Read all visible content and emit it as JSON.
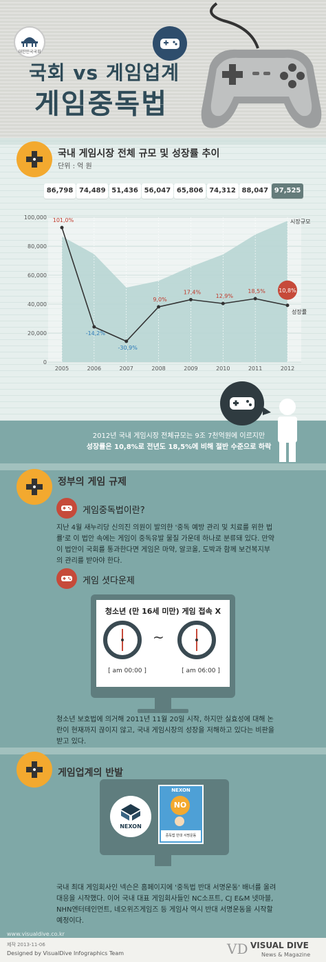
{
  "header": {
    "seal_text": "대한민국국회",
    "title_line1": "국회 vs 게임업계",
    "title_line2": "게임중독법"
  },
  "section1": {
    "title": "국내 게임시장 전체 규모 및 성장률 추이",
    "unit": "단위 : 억 원",
    "value_boxes": [
      "86,798",
      "74,489",
      "51,436",
      "56,047",
      "65,806",
      "74,312",
      "88,047",
      "97,525"
    ]
  },
  "chart_data": {
    "type": "area",
    "categories": [
      "2005",
      "2006",
      "2007",
      "2008",
      "2009",
      "2010",
      "2011",
      "2012"
    ],
    "series": [
      {
        "name": "시장규모",
        "values": [
          86798,
          74489,
          51436,
          56047,
          65806,
          74312,
          88047,
          97525
        ]
      },
      {
        "name": "성장률",
        "values": [
          101.0,
          -14.2,
          -30.9,
          9.0,
          17.4,
          12.9,
          18.5,
          10.8
        ],
        "labels": [
          "101,0%",
          "-14,2%",
          "-30,9%",
          "9,0%",
          "17,4%",
          "12,9%",
          "18,5%",
          "10,8%"
        ]
      }
    ],
    "y_ticks": [
      "100,000",
      "80,000",
      "60,000",
      "40,000",
      "20,000",
      "0"
    ],
    "ylim": [
      0,
      100000
    ],
    "colors": {
      "area": "#b8d6d4",
      "line": "#333333",
      "positive_label": "#c0392b",
      "negative_label": "#2e7bb8"
    }
  },
  "statement": {
    "line1": "2012년 국내 게임시장 전체규모는 9조 7천억원에 이르지만",
    "line2": "성장률은 10,8%로 전년도 18,5%에 비해 절반 수준으로 하락"
  },
  "section2": {
    "title": "정부의 게임 규제",
    "sub1_title": "게임중독법이란?",
    "sub1_text": "지난 4월 새누리당 신의진 의원이 발의한 '중독 예방 관리 및 치료를 위한 법률'로 이 법안 속에는 게임이 중독유발 물질 가운데 하나로 분류돼 있다. 만약 이 법안이 국회를 통과한다면 게임은 마약, 알코올, 도박과 함께 보건복지부의 관리를 받아야 한다.",
    "sub2_title": "게임 셧다운제",
    "monitor_title": "청소년 (만 16세 미만) 게임 접속 X",
    "time_start": "[ am 00:00 ]",
    "time_end": "[ am 06:00 ]",
    "tilde": "~",
    "para2": "청소년 보호법에 의거해 2011년 11월 20일 시작, 하지만 실효성에 대해 논란이 현재까지 끊이지 않고, 국내 게임시장의 성장을 저해하고 있다는 비판을 받고 있다."
  },
  "section3": {
    "title": "게임업계의 반발",
    "nexon_label": "NEXON",
    "poster_brand": "NEXON",
    "poster_no": "NO",
    "poster_caption": "중독법 반대 서명운동",
    "para": "국내 최대 게임회사인 넥슨은 홈페이지에 '중독법 반대 서명운동' 배너를 올려 대응을 시작했다. 이어 국내 대표 게임회사들인 NC소프트, CJ E&M 넷마블, NHN엔터테인먼트, 네오위즈게임즈 등 게임사 역시 반대 서명운동을 시작할 예정이다."
  },
  "footer": {
    "url": "www.visualdive.co.kr",
    "date": "제작 2013-11-06",
    "designed": "Designed by VisualDive Infographics Team",
    "brand": "VISUAL DIVE",
    "brand_sub": "News & Magazine",
    "logo": "VD"
  }
}
